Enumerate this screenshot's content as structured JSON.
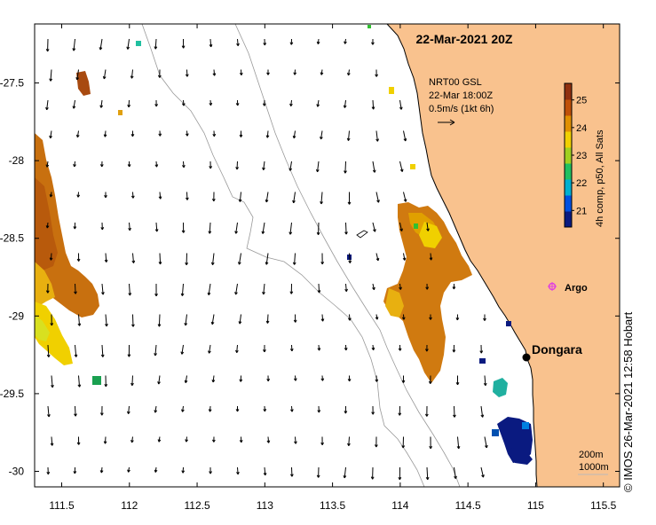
{
  "map": {
    "title": "22-Mar-2021 20Z",
    "current_model": "NRT00 GSL",
    "current_time": "22-Mar 18:00Z",
    "current_scale": "0.5m/s (1kt 6h)",
    "colorbar": {
      "label": "4h comp, p50, All Sats",
      "ticks": [
        "21",
        "22",
        "23",
        "24",
        "25"
      ],
      "min": 20.4,
      "max": 25.6,
      "colors": [
        "#0a1a80",
        "#0050e0",
        "#00b0d0",
        "#20c060",
        "#a0d020",
        "#f0d000",
        "#e09000",
        "#c05008",
        "#903010"
      ]
    },
    "places": [
      {
        "name": "Dongara",
        "lon": 114.93,
        "lat": -29.25,
        "marker": "dot"
      },
      {
        "name": "Argo",
        "lon": 115.1,
        "lat": -28.83,
        "marker": "float-icon"
      }
    ],
    "depth_legend": [
      "200m",
      "1000m"
    ],
    "credit": "© IMOS 26-Mar-2021 12:58 Hobart",
    "x_ticks": [
      "111.5",
      "112",
      "112.5",
      "113",
      "113.5",
      "114",
      "114.5",
      "115",
      "115.5"
    ],
    "y_ticks": [
      "-27.5",
      "-28",
      "-28.5",
      "-29",
      "-29.5",
      "-30"
    ],
    "lon_range": [
      111.3,
      115.62
    ],
    "lat_range": [
      -30.1,
      -27.12
    ],
    "land_color": "#f9c28e",
    "argo_color": "#e040e0"
  }
}
